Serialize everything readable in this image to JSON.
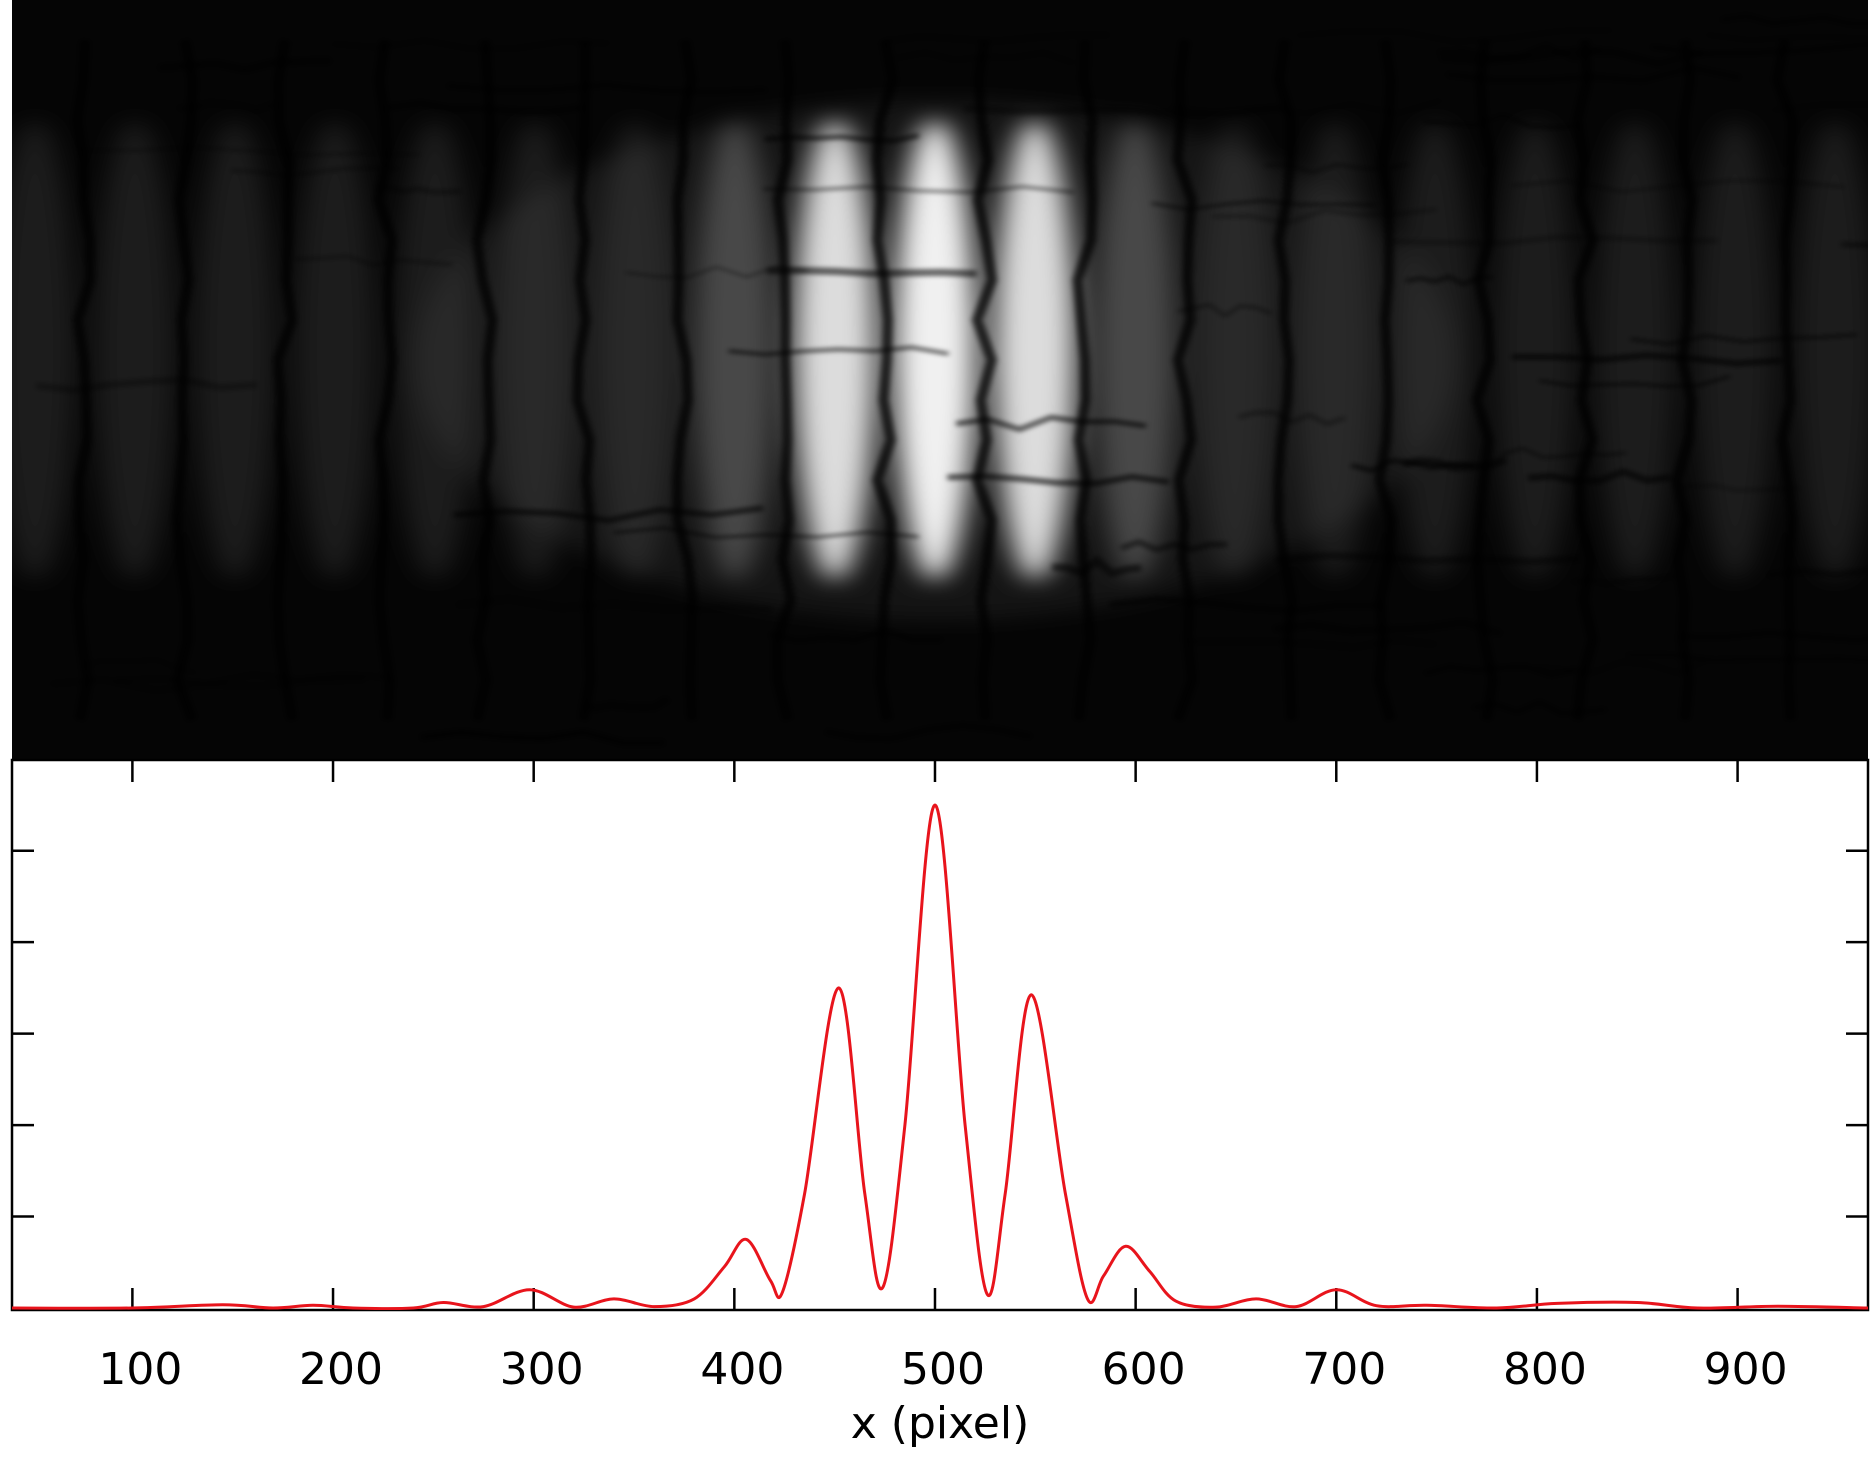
{
  "chart_data": {
    "type": "line",
    "title": "",
    "xlabel": "x (pixel)",
    "ylabel": "",
    "xlim": [
      40,
      965
    ],
    "ylim": [
      0,
      1.1
    ],
    "x_ticks": [
      100,
      200,
      300,
      400,
      500,
      600,
      700,
      800,
      900
    ],
    "x_tick_labels": [
      "100",
      "200",
      "300",
      "400",
      "500",
      "600",
      "700",
      "800",
      "900"
    ],
    "y_ticks": [
      0.2,
      0.4,
      0.6,
      0.8,
      1.0
    ],
    "y_tick_labels": [],
    "grid": false,
    "legend": "none",
    "image_panel": {
      "kind": "grayscale interference pattern",
      "colormap": "gray",
      "peak_x": 500
    },
    "series": [
      {
        "color": "#e8141c",
        "x": [
          40,
          100,
          145,
          170,
          190,
          210,
          240,
          255,
          275,
          298,
          320,
          340,
          360,
          380,
          395,
          406,
          418,
          424,
          435,
          452,
          465,
          474,
          485,
          500,
          515,
          526,
          535,
          548,
          565,
          576,
          584,
          595,
          607,
          620,
          640,
          660,
          680,
          700,
          720,
          745,
          780,
          810,
          850,
          880,
          920,
          965
        ],
        "y": [
          0.0,
          0.0,
          0.007,
          0.0,
          0.006,
          0.0,
          0.0,
          0.012,
          0.003,
          0.04,
          0.002,
          0.02,
          0.003,
          0.02,
          0.09,
          0.15,
          0.06,
          0.035,
          0.25,
          0.7,
          0.25,
          0.045,
          0.4,
          1.1,
          0.4,
          0.03,
          0.25,
          0.685,
          0.25,
          0.02,
          0.07,
          0.135,
          0.08,
          0.015,
          0.002,
          0.02,
          0.003,
          0.04,
          0.005,
          0.006,
          0.0,
          0.01,
          0.012,
          0.0,
          0.004,
          0.0
        ]
      }
    ]
  }
}
